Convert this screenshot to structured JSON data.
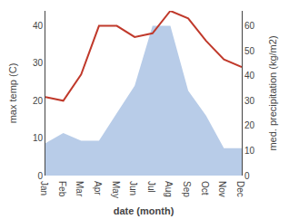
{
  "chart_data": {
    "type": "line",
    "categories": [
      "Jan",
      "Feb",
      "Mar",
      "Apr",
      "May",
      "Jun",
      "Jul",
      "Aug",
      "Sep",
      "Oct",
      "Nov",
      "Dec"
    ],
    "series": [
      {
        "type": "area",
        "axis": "y2",
        "color": "#b8cce8",
        "values": [
          13,
          17,
          14,
          14,
          25,
          36,
          60,
          60,
          34,
          24,
          11,
          11
        ]
      },
      {
        "type": "line",
        "color": "#c0392b",
        "values": [
          21,
          20,
          27,
          40,
          40,
          37,
          38,
          44,
          42,
          36,
          31,
          29
        ]
      }
    ],
    "xlabel": "date (month)",
    "ylabel": "max temp (C)",
    "y2label": "med. precipitation (kg/m2)",
    "ylim": [
      0,
      44
    ],
    "yticks": [
      0,
      10,
      20,
      30,
      40
    ],
    "y2lim": [
      0,
      66
    ],
    "y2ticks": [
      0,
      10,
      20,
      30,
      40,
      50,
      60
    ],
    "grid": false
  }
}
